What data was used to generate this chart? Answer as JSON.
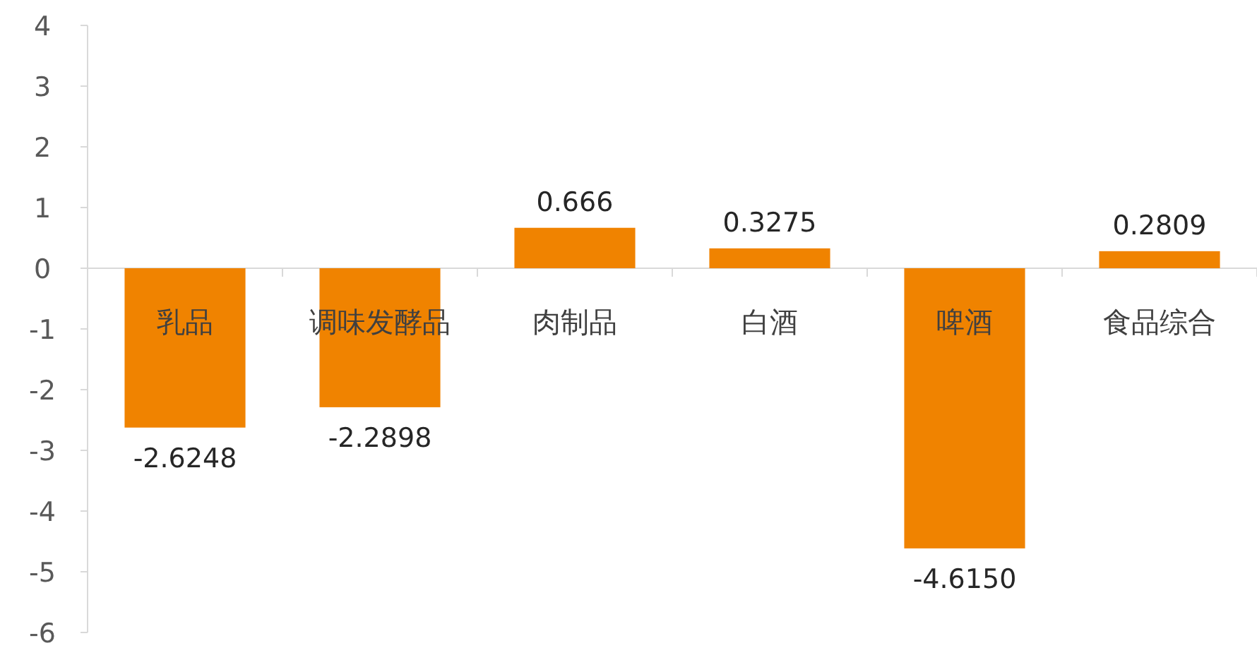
{
  "chart_data": {
    "type": "bar",
    "categories": [
      "乳品",
      "调味发酵品",
      "肉制品",
      "白酒",
      "啤酒",
      "食品综合"
    ],
    "values": [
      -2.6248,
      -2.2898,
      0.666,
      0.3275,
      -4.615,
      0.2809
    ],
    "value_labels": [
      "-2.6248",
      "-2.2898",
      "0.666",
      "0.3275",
      "-4.6150",
      "0.2809"
    ],
    "color": "#f08300",
    "ylim": [
      -6,
      4
    ],
    "yticks": [
      -6,
      -5,
      -4,
      -3,
      -2,
      -1,
      0,
      1,
      2,
      3,
      4
    ],
    "grid": false
  }
}
